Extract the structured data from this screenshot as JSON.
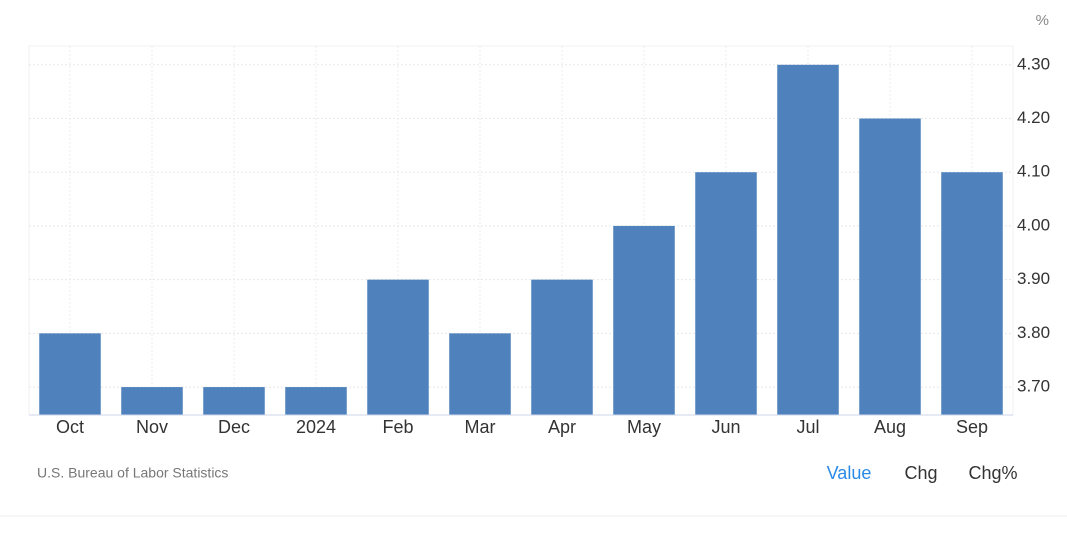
{
  "chart_data": {
    "type": "bar",
    "unit": "%",
    "categories": [
      "Oct",
      "Nov",
      "Dec",
      "2024",
      "Feb",
      "Mar",
      "Apr",
      "May",
      "Jun",
      "Jul",
      "Aug",
      "Sep"
    ],
    "values": [
      3.8,
      3.7,
      3.7,
      3.7,
      3.9,
      3.8,
      3.9,
      4.0,
      4.1,
      4.3,
      4.2,
      4.1
    ],
    "color": "#4f81bd",
    "ylim": [
      3.648,
      4.335
    ],
    "yticks": [
      {
        "value": 3.7,
        "label": "3.70"
      },
      {
        "value": 3.8,
        "label": "3.80"
      },
      {
        "value": 3.9,
        "label": "3.90"
      },
      {
        "value": 4.0,
        "label": "4.00"
      },
      {
        "value": 4.1,
        "label": "4.10"
      },
      {
        "value": 4.2,
        "label": "4.20"
      },
      {
        "value": 4.3,
        "label": "4.30"
      }
    ],
    "grid": true,
    "source": "U.S. Bureau of Labor Statistics"
  },
  "controls": [
    "Value",
    "Chg",
    "Chg%"
  ]
}
